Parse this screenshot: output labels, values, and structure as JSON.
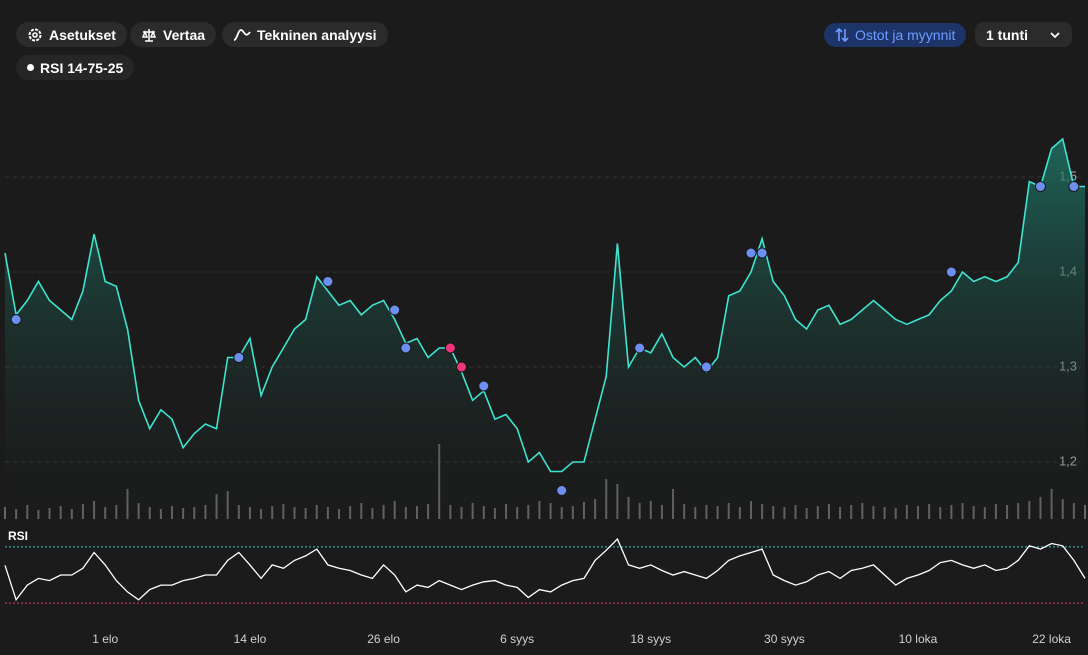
{
  "toolbar": {
    "settings": "Asetukset",
    "compare": "Vertaa",
    "technical": "Tekninen analyysi",
    "trades": "Ostot ja myynnit",
    "interval": "1 tunti",
    "indicator": "RSI 14-75-25"
  },
  "chart_data": {
    "type": "line",
    "color": "#3fe3cf",
    "grid": true,
    "categories": [
      null,
      null,
      null,
      null,
      null,
      null,
      null,
      null,
      null,
      "1 elo",
      null,
      null,
      null,
      null,
      null,
      null,
      null,
      null,
      null,
      null,
      null,
      null,
      "14 elo",
      null,
      null,
      null,
      null,
      null,
      null,
      null,
      null,
      null,
      null,
      null,
      "26 elo",
      null,
      null,
      null,
      null,
      null,
      null,
      null,
      null,
      null,
      null,
      null,
      "6 syys",
      null,
      null,
      null,
      null,
      null,
      null,
      null,
      null,
      null,
      null,
      null,
      "18 syys",
      null,
      null,
      null,
      null,
      null,
      null,
      null,
      null,
      null,
      null,
      null,
      "30 syys",
      null,
      null,
      null,
      null,
      null,
      null,
      null,
      null,
      null,
      null,
      null,
      "10 loka",
      null,
      null,
      null,
      null,
      null,
      null,
      null,
      null,
      null,
      null,
      null,
      "22 loka",
      null,
      null,
      null
    ],
    "values": [
      1.42,
      1.355,
      1.37,
      1.39,
      1.37,
      1.36,
      1.35,
      1.38,
      1.44,
      1.39,
      1.385,
      1.34,
      1.265,
      1.235,
      1.255,
      1.245,
      1.215,
      1.23,
      1.24,
      1.235,
      1.31,
      1.31,
      1.33,
      1.27,
      1.3,
      1.32,
      1.34,
      1.35,
      1.395,
      1.38,
      1.365,
      1.37,
      1.355,
      1.365,
      1.37,
      1.35,
      1.325,
      1.33,
      1.31,
      1.32,
      1.32,
      1.295,
      1.265,
      1.275,
      1.245,
      1.25,
      1.235,
      1.2,
      1.21,
      1.19,
      1.19,
      1.2,
      1.2,
      1.245,
      1.29,
      1.43,
      1.3,
      1.32,
      1.315,
      1.335,
      1.31,
      1.3,
      1.31,
      1.295,
      1.31,
      1.375,
      1.38,
      1.4,
      1.435,
      1.39,
      1.375,
      1.35,
      1.34,
      1.36,
      1.365,
      1.345,
      1.35,
      1.36,
      1.37,
      1.36,
      1.35,
      1.345,
      1.35,
      1.355,
      1.37,
      1.38,
      1.4,
      1.39,
      1.395,
      1.39,
      1.395,
      1.41,
      1.495,
      1.49,
      1.53,
      1.54,
      1.49,
      1.49
    ],
    "ylim": [
      1.14,
      1.6
    ],
    "yticks": [
      {
        "value": 1.2,
        "label": "1,2"
      },
      {
        "value": 1.3,
        "label": "1,3"
      },
      {
        "value": 1.4,
        "label": "1,4"
      },
      {
        "value": 1.5,
        "label": "1,5"
      }
    ],
    "buys": {
      "color": "#6e8ff2",
      "values": [
        null,
        1.35,
        null,
        null,
        null,
        null,
        null,
        null,
        null,
        null,
        null,
        null,
        null,
        null,
        null,
        null,
        null,
        null,
        null,
        null,
        null,
        1.31,
        null,
        null,
        null,
        null,
        null,
        null,
        null,
        1.39,
        null,
        null,
        null,
        null,
        null,
        1.36,
        1.32,
        null,
        null,
        null,
        null,
        null,
        null,
        1.28,
        null,
        null,
        null,
        null,
        null,
        null,
        1.17,
        null,
        null,
        null,
        null,
        null,
        null,
        1.32,
        null,
        null,
        null,
        null,
        null,
        1.3,
        null,
        null,
        null,
        1.42,
        1.42,
        null,
        null,
        null,
        null,
        null,
        null,
        null,
        null,
        null,
        null,
        null,
        null,
        null,
        null,
        null,
        null,
        1.4,
        null,
        null,
        null,
        null,
        null,
        null,
        null,
        1.49,
        null,
        null,
        1.49,
        null
      ]
    },
    "sells": {
      "color": "#f0347c",
      "values": [
        null,
        null,
        null,
        null,
        null,
        null,
        null,
        null,
        null,
        null,
        null,
        null,
        null,
        null,
        null,
        null,
        null,
        null,
        null,
        null,
        null,
        null,
        null,
        null,
        null,
        null,
        null,
        null,
        null,
        null,
        null,
        null,
        null,
        null,
        null,
        null,
        null,
        null,
        null,
        null,
        1.32,
        1.3,
        null,
        null,
        null,
        null,
        null,
        null,
        null,
        null,
        null,
        null,
        null,
        null,
        null,
        null,
        null,
        null,
        null,
        null,
        null,
        null,
        null,
        null,
        null,
        null,
        null,
        null,
        null,
        null,
        null,
        null,
        null,
        null,
        null,
        null,
        null,
        null,
        null,
        null,
        null,
        null,
        null,
        null,
        null,
        null,
        null,
        null,
        null,
        null,
        null,
        null,
        null,
        null,
        null,
        null,
        null,
        null
      ]
    },
    "volume": {
      "color": "#6a6a6a",
      "values": [
        12,
        10,
        14,
        9,
        11,
        13,
        10,
        15,
        18,
        12,
        14,
        30,
        16,
        12,
        10,
        13,
        11,
        12,
        14,
        25,
        28,
        14,
        12,
        10,
        13,
        15,
        12,
        11,
        14,
        12,
        10,
        13,
        16,
        11,
        14,
        18,
        12,
        13,
        15,
        75,
        14,
        12,
        16,
        13,
        11,
        15,
        12,
        14,
        18,
        16,
        12,
        13,
        17,
        20,
        40,
        35,
        22,
        16,
        18,
        14,
        30,
        15,
        12,
        14,
        13,
        16,
        12,
        18,
        15,
        13,
        12,
        14,
        11,
        13,
        15,
        12,
        14,
        16,
        13,
        12,
        11,
        14,
        13,
        15,
        12,
        14,
        16,
        13,
        12,
        15,
        14,
        16,
        18,
        22,
        30,
        20,
        16,
        14
      ]
    },
    "rsi": {
      "title": "RSI",
      "color": "#ffffff",
      "ylim": [
        10,
        90
      ],
      "levels": [
        {
          "value": 75,
          "color": "#34c9c2"
        },
        {
          "value": 25,
          "color": "#e8347a"
        }
      ],
      "values": [
        58.6,
        28,
        41,
        47,
        45,
        50,
        50,
        56,
        70,
        59,
        45,
        35,
        28,
        37,
        41,
        41,
        45,
        47,
        50,
        50,
        63,
        70,
        59,
        47,
        59,
        56,
        63,
        67,
        73,
        59,
        56,
        54,
        50,
        47,
        59,
        50,
        35,
        41,
        39,
        45,
        41,
        37,
        41,
        44,
        45,
        41,
        39,
        30,
        37,
        35,
        41,
        45,
        47,
        63,
        72,
        82,
        59,
        56,
        59,
        54,
        50,
        53,
        50,
        47,
        54,
        63,
        67,
        70,
        73,
        50,
        45,
        41,
        44,
        50,
        53,
        47,
        54,
        56,
        59,
        50,
        41,
        47,
        50,
        54,
        61,
        63,
        59,
        56,
        59,
        54,
        56,
        63,
        76,
        73,
        78,
        76,
        63,
        47
      ]
    }
  }
}
